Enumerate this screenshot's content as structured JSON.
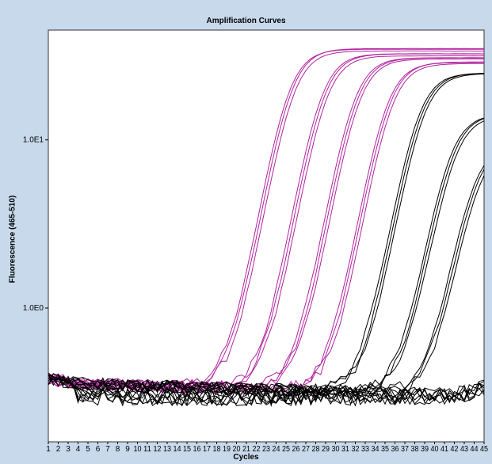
{
  "chart_data": {
    "type": "line",
    "title": "Amplification Curves",
    "xlabel": "Cycles",
    "ylabel": "Fluorescence (465-510)",
    "y_scale": "log",
    "xlim": [
      1,
      45
    ],
    "ylim": [
      0.16,
      45
    ],
    "x_ticks": [
      "1",
      "2",
      "3",
      "4",
      "5",
      "6",
      "7",
      "8",
      "9",
      "10",
      "11",
      "12",
      "13",
      "14",
      "15",
      "16",
      "17",
      "18",
      "19",
      "20",
      "21",
      "22",
      "23",
      "24",
      "25",
      "26",
      "27",
      "28",
      "29",
      "30",
      "31",
      "32",
      "33",
      "34",
      "35",
      "36",
      "37",
      "38",
      "39",
      "40",
      "41",
      "42",
      "43",
      "44",
      "45"
    ],
    "y_ticks": [
      {
        "value": 10,
        "label": "1.0E1"
      },
      {
        "value": 1,
        "label": "1.0E0"
      }
    ],
    "grid": false,
    "legend": "none",
    "colors": {
      "magenta": "#b2229f",
      "black": "#000000",
      "background": "#c7d9eb",
      "plot_bg": "#ffffff"
    },
    "curve_groups": [
      {
        "color": "magenta",
        "ct": 25.3,
        "plateau": 34,
        "count": 3
      },
      {
        "color": "magenta",
        "ct": 28.6,
        "plateau": 32,
        "count": 3
      },
      {
        "color": "magenta",
        "ct": 31.9,
        "plateau": 30,
        "count": 3
      },
      {
        "color": "magenta",
        "ct": 35.2,
        "plateau": 28,
        "count": 3
      },
      {
        "color": "black",
        "ct": 38.4,
        "plateau": 25,
        "count": 3
      },
      {
        "color": "black",
        "ct": 41.6,
        "plateau": 14,
        "count": 3
      },
      {
        "color": "black",
        "ct": 44.0,
        "plateau": 9,
        "count": 3
      },
      {
        "color": "black",
        "ct": null,
        "plateau": 0.3,
        "count": 8
      }
    ]
  }
}
